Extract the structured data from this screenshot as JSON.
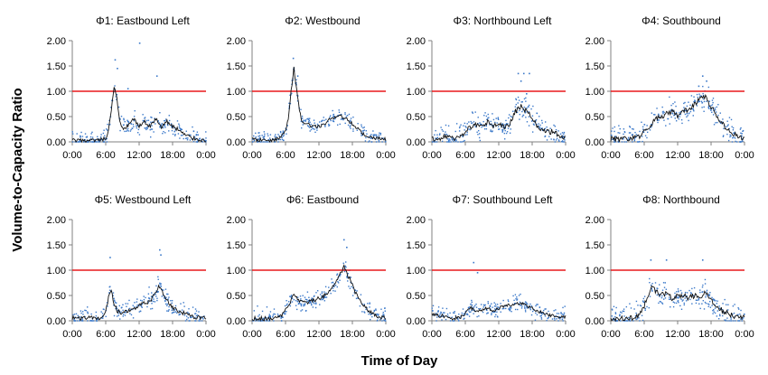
{
  "chart_data": {
    "type": "scatter",
    "ylabel": "Volume-to-Capacity Ratio",
    "xlabel": "Time of Day",
    "x_tick_labels": [
      "0:00",
      "6:00",
      "12:00",
      "18:00",
      "0:00"
    ],
    "y_tick_labels": [
      "0.00",
      "0.50",
      "1.00",
      "1.50",
      "2.00"
    ],
    "xlim": [
      0,
      24
    ],
    "ylim": [
      0,
      2
    ],
    "reference_line": {
      "y": 1.0,
      "color": "#e8191b"
    },
    "colors": {
      "points": "#3a78c9",
      "trend": "#111111",
      "axes": "#808080"
    },
    "panels": [
      {
        "title": "Φ1: Eastbound Left",
        "trend": [
          [
            0,
            0.03
          ],
          [
            1,
            0.02
          ],
          [
            2,
            0.02
          ],
          [
            3,
            0.02
          ],
          [
            4,
            0.02
          ],
          [
            5,
            0.03
          ],
          [
            6,
            0.06
          ],
          [
            6.5,
            0.2
          ],
          [
            7,
            0.6
          ],
          [
            7.5,
            1.1
          ],
          [
            8,
            0.85
          ],
          [
            8.5,
            0.45
          ],
          [
            9,
            0.25
          ],
          [
            10,
            0.3
          ],
          [
            11,
            0.45
          ],
          [
            12,
            0.3
          ],
          [
            13,
            0.4
          ],
          [
            14,
            0.3
          ],
          [
            15,
            0.45
          ],
          [
            16,
            0.3
          ],
          [
            17,
            0.4
          ],
          [
            18,
            0.3
          ],
          [
            19,
            0.25
          ],
          [
            20,
            0.15
          ],
          [
            21,
            0.1
          ],
          [
            22,
            0.06
          ],
          [
            23,
            0.04
          ],
          [
            24,
            0.03
          ]
        ],
        "spread": 0.12,
        "outliers": [
          [
            7.7,
            1.62
          ],
          [
            8.1,
            1.45
          ],
          [
            15.2,
            1.3
          ],
          [
            12.1,
            1.95
          ],
          [
            10,
            1.05
          ]
        ]
      },
      {
        "title": "Φ2: Westbound",
        "trend": [
          [
            0,
            0.05
          ],
          [
            1,
            0.04
          ],
          [
            2,
            0.03
          ],
          [
            3,
            0.03
          ],
          [
            4,
            0.04
          ],
          [
            5,
            0.08
          ],
          [
            6,
            0.2
          ],
          [
            6.5,
            0.45
          ],
          [
            7,
            1.0
          ],
          [
            7.5,
            1.45
          ],
          [
            8,
            1.05
          ],
          [
            8.5,
            0.6
          ],
          [
            9,
            0.4
          ],
          [
            10,
            0.35
          ],
          [
            11,
            0.3
          ],
          [
            12,
            0.3
          ],
          [
            13,
            0.35
          ],
          [
            14,
            0.45
          ],
          [
            15,
            0.5
          ],
          [
            16,
            0.5
          ],
          [
            17,
            0.45
          ],
          [
            18,
            0.35
          ],
          [
            19,
            0.25
          ],
          [
            20,
            0.15
          ],
          [
            21,
            0.1
          ],
          [
            22,
            0.08
          ],
          [
            23,
            0.06
          ],
          [
            24,
            0.05
          ]
        ],
        "spread": 0.1,
        "outliers": [
          [
            7.4,
            1.65
          ],
          [
            8.2,
            1.3
          ]
        ]
      },
      {
        "title": "Φ3: Northbound Left",
        "trend": [
          [
            0,
            0.05
          ],
          [
            1,
            0.06
          ],
          [
            2,
            0.1
          ],
          [
            3,
            0.12
          ],
          [
            4,
            0.08
          ],
          [
            5,
            0.1
          ],
          [
            6,
            0.2
          ],
          [
            7,
            0.3
          ],
          [
            8,
            0.35
          ],
          [
            9,
            0.3
          ],
          [
            10,
            0.4
          ],
          [
            11,
            0.3
          ],
          [
            12,
            0.35
          ],
          [
            13,
            0.3
          ],
          [
            14,
            0.35
          ],
          [
            15,
            0.6
          ],
          [
            16,
            0.7
          ],
          [
            17,
            0.6
          ],
          [
            18,
            0.5
          ],
          [
            19,
            0.3
          ],
          [
            20,
            0.25
          ],
          [
            21,
            0.2
          ],
          [
            22,
            0.2
          ],
          [
            23,
            0.1
          ],
          [
            24,
            0.08
          ]
        ],
        "spread": 0.15,
        "outliers": [
          [
            15.5,
            1.35
          ],
          [
            16.5,
            1.35
          ],
          [
            17.5,
            1.35
          ],
          [
            16,
            1.2
          ],
          [
            17,
            0.95
          ]
        ]
      },
      {
        "title": "Φ4: Southbound",
        "trend": [
          [
            0,
            0.06
          ],
          [
            1,
            0.05
          ],
          [
            2,
            0.05
          ],
          [
            3,
            0.06
          ],
          [
            4,
            0.08
          ],
          [
            5,
            0.1
          ],
          [
            6,
            0.2
          ],
          [
            7,
            0.3
          ],
          [
            8,
            0.45
          ],
          [
            9,
            0.5
          ],
          [
            10,
            0.55
          ],
          [
            11,
            0.6
          ],
          [
            12,
            0.5
          ],
          [
            13,
            0.6
          ],
          [
            14,
            0.65
          ],
          [
            15,
            0.75
          ],
          [
            16,
            0.85
          ],
          [
            17,
            0.9
          ],
          [
            18,
            0.7
          ],
          [
            19,
            0.5
          ],
          [
            20,
            0.35
          ],
          [
            21,
            0.25
          ],
          [
            22,
            0.15
          ],
          [
            23,
            0.1
          ],
          [
            24,
            0.08
          ]
        ],
        "spread": 0.15,
        "outliers": [
          [
            16.5,
            1.3
          ],
          [
            17.2,
            1.2
          ],
          [
            15.8,
            1.1
          ]
        ]
      },
      {
        "title": "Φ5: Westbound Left",
        "trend": [
          [
            0,
            0.05
          ],
          [
            1,
            0.05
          ],
          [
            2,
            0.05
          ],
          [
            3,
            0.05
          ],
          [
            4,
            0.05
          ],
          [
            5,
            0.05
          ],
          [
            6,
            0.2
          ],
          [
            6.5,
            0.45
          ],
          [
            7,
            0.6
          ],
          [
            7.5,
            0.35
          ],
          [
            8,
            0.2
          ],
          [
            9,
            0.15
          ],
          [
            10,
            0.2
          ],
          [
            11,
            0.25
          ],
          [
            12,
            0.3
          ],
          [
            13,
            0.35
          ],
          [
            14,
            0.4
          ],
          [
            15,
            0.55
          ],
          [
            15.5,
            0.7
          ],
          [
            16,
            0.6
          ],
          [
            17,
            0.4
          ],
          [
            18,
            0.25
          ],
          [
            19,
            0.2
          ],
          [
            20,
            0.15
          ],
          [
            21,
            0.1
          ],
          [
            22,
            0.08
          ],
          [
            23,
            0.05
          ],
          [
            24,
            0.05
          ]
        ],
        "spread": 0.12,
        "outliers": [
          [
            15.7,
            1.4
          ],
          [
            15.9,
            1.3
          ],
          [
            6.8,
            1.25
          ]
        ]
      },
      {
        "title": "Φ6: Eastbound",
        "trend": [
          [
            0,
            0.05
          ],
          [
            1,
            0.05
          ],
          [
            2,
            0.04
          ],
          [
            3,
            0.04
          ],
          [
            4,
            0.05
          ],
          [
            5,
            0.08
          ],
          [
            6,
            0.2
          ],
          [
            7,
            0.4
          ],
          [
            7.5,
            0.5
          ],
          [
            8,
            0.45
          ],
          [
            9,
            0.35
          ],
          [
            10,
            0.35
          ],
          [
            11,
            0.4
          ],
          [
            12,
            0.45
          ],
          [
            13,
            0.5
          ],
          [
            14,
            0.6
          ],
          [
            15,
            0.75
          ],
          [
            16,
            0.95
          ],
          [
            16.5,
            1.1
          ],
          [
            17,
            0.95
          ],
          [
            18,
            0.7
          ],
          [
            19,
            0.45
          ],
          [
            20,
            0.3
          ],
          [
            21,
            0.2
          ],
          [
            22,
            0.12
          ],
          [
            23,
            0.08
          ],
          [
            24,
            0.06
          ]
        ],
        "spread": 0.12,
        "outliers": [
          [
            16.5,
            1.6
          ],
          [
            17,
            1.45
          ]
        ]
      },
      {
        "title": "Φ7: Southbound Left",
        "trend": [
          [
            0,
            0.15
          ],
          [
            1,
            0.1
          ],
          [
            2,
            0.1
          ],
          [
            3,
            0.05
          ],
          [
            4,
            0.05
          ],
          [
            5,
            0.06
          ],
          [
            6,
            0.15
          ],
          [
            7,
            0.25
          ],
          [
            8,
            0.2
          ],
          [
            9,
            0.2
          ],
          [
            10,
            0.25
          ],
          [
            11,
            0.2
          ],
          [
            12,
            0.25
          ],
          [
            13,
            0.3
          ],
          [
            14,
            0.3
          ],
          [
            15,
            0.35
          ],
          [
            16,
            0.35
          ],
          [
            17,
            0.3
          ],
          [
            18,
            0.25
          ],
          [
            19,
            0.2
          ],
          [
            20,
            0.15
          ],
          [
            21,
            0.12
          ],
          [
            22,
            0.1
          ],
          [
            23,
            0.08
          ],
          [
            24,
            0.08
          ]
        ],
        "spread": 0.1,
        "outliers": [
          [
            7.5,
            1.15
          ],
          [
            8.2,
            0.95
          ]
        ]
      },
      {
        "title": "Φ8: Northbound",
        "trend": [
          [
            0,
            0.05
          ],
          [
            1,
            0.05
          ],
          [
            2,
            0.05
          ],
          [
            3,
            0.05
          ],
          [
            4,
            0.06
          ],
          [
            5,
            0.1
          ],
          [
            6,
            0.3
          ],
          [
            7,
            0.6
          ],
          [
            7.5,
            0.7
          ],
          [
            8,
            0.6
          ],
          [
            9,
            0.5
          ],
          [
            10,
            0.55
          ],
          [
            11,
            0.45
          ],
          [
            12,
            0.5
          ],
          [
            13,
            0.5
          ],
          [
            14,
            0.45
          ],
          [
            15,
            0.5
          ],
          [
            16,
            0.45
          ],
          [
            17,
            0.55
          ],
          [
            18,
            0.4
          ],
          [
            19,
            0.3
          ],
          [
            20,
            0.2
          ],
          [
            21,
            0.15
          ],
          [
            22,
            0.1
          ],
          [
            23,
            0.08
          ],
          [
            24,
            0.06
          ]
        ],
        "spread": 0.15,
        "outliers": [
          [
            16.5,
            1.2
          ],
          [
            7.2,
            1.2
          ],
          [
            10,
            1.2
          ]
        ]
      }
    ]
  }
}
